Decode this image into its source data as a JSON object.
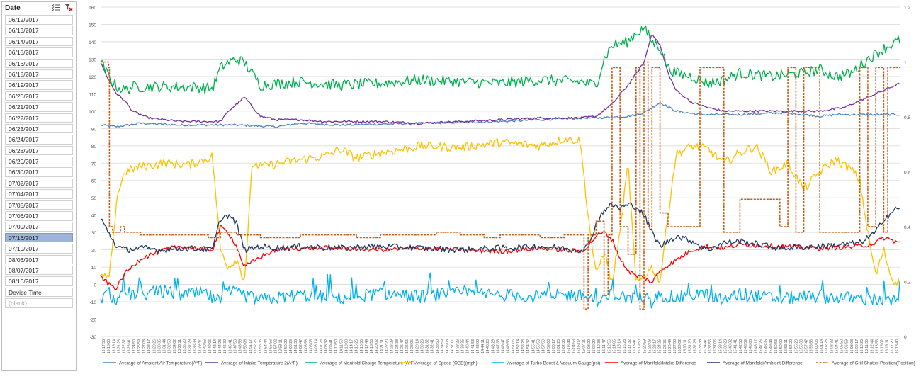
{
  "slicer": {
    "title": "Date",
    "selected": "07/16/2017",
    "items": [
      "06/12/2017",
      "06/13/2017",
      "06/14/2017",
      "06/15/2017",
      "06/16/2017",
      "06/18/2017",
      "06/19/2017",
      "06/20/2017",
      "06/21/2017",
      "06/22/2017",
      "06/23/2017",
      "06/24/2017",
      "06/28/2017",
      "06/29/2017",
      "06/30/2017",
      "07/02/2017",
      "07/04/2017",
      "07/05/2017",
      "07/06/2017",
      "07/09/2017",
      "07/16/2017",
      "07/19/2017",
      "08/06/2017",
      "08/07/2017",
      "08/16/2017",
      "Device Time",
      "(blank)"
    ],
    "icons": [
      "multi-select-icon",
      "clear-filter-icon"
    ]
  },
  "chart_data": {
    "type": "line",
    "title": "",
    "xlabel": "",
    "ylabel": "",
    "ylim": [
      -30,
      160
    ],
    "y2lim": [
      0,
      1.2
    ],
    "y_ticks": [
      -30,
      -20,
      -10,
      0,
      10,
      20,
      30,
      40,
      50,
      60,
      70,
      80,
      90,
      100,
      110,
      120,
      130,
      140,
      150,
      160
    ],
    "y2_ticks": [
      0,
      0.2,
      0.4,
      0.6,
      0.8,
      1,
      1.2
    ],
    "grid": true,
    "legend": "bottom",
    "x_ticks": [
      "13:17:56",
      "13:18:05",
      "13:19:14",
      "13:21:23",
      "13:22:32",
      "13:23:41",
      "13:24:50",
      "13:25:59",
      "13:27:08",
      "13:28:17",
      "13:29:26",
      "13:30:35",
      "13:31:44",
      "13:32:53",
      "13:34:02",
      "13:35:11",
      "13:36:20",
      "13:37:29",
      "13:38:38",
      "13:39:47",
      "13:40:56",
      "13:42:05",
      "13:43:14",
      "13:44:23",
      "13:45:32",
      "13:46:41",
      "13:47:50",
      "13:48:59",
      "13:50:08",
      "13:51:17",
      "13:52:26",
      "13:53:35",
      "13:54:44",
      "13:55:53",
      "13:57:02",
      "13:58:11",
      "13:59:20",
      "14:00:29",
      "14:01:38",
      "14:02:47",
      "14:03:56",
      "14:05:05",
      "14:06:14",
      "14:07:23",
      "14:08:32",
      "14:09:41",
      "14:10:50",
      "14:11:59",
      "14:13:08",
      "14:14:17",
      "14:15:26",
      "14:16:35",
      "14:17:44",
      "14:18:53",
      "14:20:02",
      "14:21:11",
      "14:22:20",
      "14:23:29",
      "14:24:38",
      "14:25:47",
      "14:26:56",
      "14:28:05",
      "14:29:14",
      "14:30:23",
      "14:31:32",
      "14:32:41",
      "14:33:50",
      "14:34:59",
      "14:36:08",
      "14:37:17",
      "14:38:26",
      "14:39:35",
      "14:40:44",
      "14:41:53",
      "14:43:02",
      "14:44:11",
      "14:45:20",
      "14:46:29",
      "14:47:38",
      "14:48:47",
      "14:49:56",
      "14:51:05",
      "14:52:14",
      "14:53:23",
      "14:54:32",
      "14:55:41",
      "14:56:50",
      "14:57:59",
      "14:59:08",
      "15:00:17",
      "15:01:26",
      "15:02:35",
      "15:03:44",
      "15:04:53",
      "15:06:02",
      "15:07:11",
      "15:08:20",
      "15:09:29",
      "15:10:38",
      "15:11:47",
      "15:12:56",
      "15:14:05",
      "15:15:14",
      "15:16:23",
      "15:17:32",
      "15:18:41",
      "15:19:50",
      "15:20:59",
      "15:22:08",
      "15:23:17",
      "15:24:26",
      "15:25:35",
      "15:26:44",
      "15:27:53",
      "15:29:02",
      "15:30:11",
      "15:31:20",
      "15:32:29",
      "15:33:38",
      "15:34:47",
      "15:35:56",
      "15:37:05",
      "15:38:14",
      "15:39:23",
      "15:40:32",
      "15:41:41",
      "15:42:50",
      "15:43:59",
      "15:45:08",
      "15:46:17",
      "15:47:26",
      "15:48:35",
      "15:49:44",
      "15:50:53",
      "15:52:02",
      "15:53:11",
      "15:54:20",
      "15:55:29",
      "15:56:38",
      "15:57:47",
      "15:58:56",
      "16:00:05",
      "16:01:14",
      "16:02:23",
      "16:03:32",
      "16:04:41",
      "16:05:50",
      "16:06:59",
      "16:08:08",
      "16:09:17",
      "16:10:26",
      "16:11:35",
      "16:12:44",
      "16:13:53",
      "16:15:02",
      "16:16:11",
      "16:17:20",
      "16:18:40"
    ],
    "series": [
      {
        "name": "Average of Ambient Air Temperature(Â°F)",
        "color": "#4f81bd",
        "axis": "left",
        "x_pct": [
          0,
          2,
          5,
          10,
          17,
          22,
          25,
          30,
          40,
          50,
          55,
          60,
          62,
          66,
          68,
          70,
          72,
          75,
          80,
          85,
          88,
          90,
          92,
          95,
          100
        ],
        "values": [
          92,
          91,
          93,
          92,
          92,
          91,
          93,
          92,
          93,
          94,
          95,
          96,
          96,
          97,
          99,
          105,
          100,
          98,
          98,
          99,
          98,
          97,
          98,
          98,
          98
        ]
      },
      {
        "name": "Average of Intake Temperature 2(Â°F)",
        "color": "#7030a0",
        "axis": "left",
        "x_pct": [
          0,
          1,
          2,
          3,
          4,
          6,
          10,
          13,
          14,
          15,
          16,
          18,
          20,
          22,
          25,
          28,
          30,
          35,
          40,
          45,
          50,
          55,
          60,
          62,
          64,
          66,
          68,
          69,
          70,
          71,
          72,
          74,
          76,
          78,
          80,
          85,
          90,
          93,
          95,
          97,
          100
        ],
        "values": [
          128,
          118,
          110,
          106,
          100,
          96,
          94,
          94,
          94,
          94,
          100,
          108,
          97,
          95,
          95,
          94,
          94,
          94,
          93,
          94,
          95,
          96,
          96,
          97,
          104,
          115,
          128,
          145,
          138,
          122,
          112,
          105,
          102,
          100,
          100,
          100,
          100,
          102,
          106,
          110,
          116
        ]
      },
      {
        "name": "Average of Manifold Charge Temperature (Â°F)",
        "color": "#00b050",
        "axis": "left",
        "x_pct": [
          0,
          1,
          2,
          3,
          4,
          8,
          12,
          14,
          15,
          16,
          17,
          18,
          20,
          25,
          30,
          35,
          40,
          45,
          50,
          55,
          60,
          62,
          63,
          64,
          66,
          67,
          68,
          69,
          70,
          71,
          72,
          74,
          76,
          78,
          80,
          84,
          88,
          90,
          92,
          94,
          96,
          98,
          100
        ],
        "values": [
          128,
          120,
          114,
          112,
          114,
          114,
          114,
          113,
          125,
          128,
          130,
          128,
          115,
          117,
          115,
          116,
          118,
          117,
          116,
          118,
          117,
          115,
          130,
          138,
          140,
          145,
          148,
          140,
          137,
          125,
          122,
          120,
          116,
          118,
          122,
          120,
          122,
          124,
          120,
          122,
          130,
          136,
          141
        ]
      },
      {
        "name": "Average of Speed (OBD)(mph)",
        "color": "#ffc000",
        "axis": "left",
        "x_pct": [
          0,
          1,
          1.5,
          2,
          3,
          5,
          8,
          11,
          13,
          14,
          15,
          16,
          17,
          18,
          19,
          20,
          25,
          28,
          30,
          32,
          35,
          38,
          40,
          45,
          50,
          55,
          58,
          60,
          61,
          62,
          63,
          64,
          65,
          66,
          67,
          68,
          69,
          70,
          71,
          72,
          74,
          76,
          78,
          80,
          82,
          84,
          86,
          88,
          90,
          92,
          94,
          95,
          96,
          97,
          98,
          99,
          100
        ],
        "values": [
          5,
          3,
          20,
          50,
          65,
          68,
          70,
          69,
          72,
          74,
          20,
          10,
          15,
          2,
          70,
          68,
          72,
          74,
          78,
          73,
          76,
          78,
          80,
          79,
          82,
          80,
          84,
          83,
          40,
          5,
          20,
          0,
          30,
          70,
          0,
          5,
          10,
          2,
          40,
          75,
          80,
          78,
          70,
          76,
          80,
          65,
          70,
          55,
          65,
          72,
          66,
          60,
          30,
          5,
          20,
          3,
          1
        ]
      },
      {
        "name": "Average of Turbo Boost & Vacuum Gauge(psi)",
        "color": "#00b0f0",
        "axis": "left",
        "x_pct": [
          0,
          1,
          2,
          3,
          5,
          8,
          10,
          13,
          14,
          15,
          16,
          20,
          25,
          30,
          35,
          40,
          45,
          50,
          55,
          60,
          62,
          63,
          64,
          66,
          68,
          69,
          70,
          72,
          75,
          78,
          80,
          85,
          90,
          95,
          100
        ],
        "values": [
          -8,
          -5,
          -10,
          -5,
          -6,
          -4,
          -6,
          -5,
          -8,
          -10,
          -4,
          -9,
          -6,
          -8,
          -5,
          -7,
          -5,
          -6,
          -7,
          -6,
          -9,
          -10,
          -5,
          -8,
          -7,
          -11,
          -6,
          -8,
          -5,
          -9,
          -6,
          -8,
          -7,
          -8,
          -10
        ]
      },
      {
        "name": "Average of Manifold/Intake Difference",
        "color": "#ff0000",
        "axis": "left",
        "x_pct": [
          0,
          1,
          2,
          3,
          5,
          8,
          10,
          14,
          15,
          16,
          17,
          18,
          20,
          22,
          25,
          30,
          35,
          40,
          45,
          50,
          55,
          60,
          61,
          62,
          63,
          64,
          65,
          66,
          67,
          68,
          69,
          70,
          72,
          74,
          76,
          78,
          80,
          85,
          90,
          95,
          97,
          98,
          100
        ],
        "values": [
          5,
          0,
          -2,
          6,
          15,
          20,
          22,
          20,
          33,
          30,
          22,
          10,
          16,
          20,
          21,
          21,
          20,
          21,
          20,
          19,
          21,
          19,
          22,
          28,
          30,
          26,
          15,
          8,
          5,
          4,
          1,
          8,
          14,
          20,
          22,
          21,
          23,
          22,
          21,
          22,
          24,
          27,
          24
        ]
      },
      {
        "name": "Average of Manifold/Ambient Difference",
        "color": "#1f3864",
        "axis": "left",
        "x_pct": [
          0,
          1,
          2,
          3,
          5,
          8,
          10,
          14,
          15,
          16,
          17,
          18,
          20,
          22,
          25,
          30,
          35,
          40,
          45,
          50,
          55,
          60,
          61,
          62,
          63,
          64,
          65,
          66,
          67,
          68,
          69,
          70,
          72,
          74,
          76,
          78,
          80,
          85,
          90,
          95,
          97,
          98,
          100
        ],
        "values": [
          38,
          30,
          22,
          20,
          21,
          20,
          21,
          20,
          38,
          40,
          35,
          20,
          22,
          21,
          22,
          21,
          22,
          21,
          20,
          21,
          22,
          20,
          22,
          35,
          43,
          46,
          44,
          46,
          45,
          40,
          30,
          22,
          28,
          25,
          20,
          24,
          25,
          21,
          22,
          24,
          30,
          38,
          45
        ]
      },
      {
        "name": "Average of Grill Shutter Position(Position)",
        "color": "#c55a11",
        "axis": "right",
        "dashed": true,
        "x_pct": [
          0,
          0.8,
          1,
          1.1,
          1.5,
          2.5,
          3,
          5,
          10,
          13,
          13.5,
          14,
          15,
          17,
          20,
          25,
          28,
          32,
          35,
          40,
          42,
          45,
          48,
          50,
          52,
          55,
          58,
          60,
          60.5,
          61,
          62,
          63,
          63.5,
          64,
          65,
          66,
          67,
          67.5,
          68,
          68.5,
          69,
          70,
          71,
          72,
          75,
          78,
          80,
          85,
          86,
          87,
          88,
          90,
          92,
          95,
          96,
          97,
          98,
          98.5,
          99,
          100
        ],
        "values": [
          1,
          1,
          0.98,
          0.4,
          0.38,
          0.4,
          0.38,
          0.37,
          0.37,
          0.37,
          0.36,
          0.36,
          0.38,
          0.37,
          0.36,
          0.37,
          0.37,
          0.36,
          0.37,
          0.37,
          0.38,
          0.37,
          0.36,
          0.37,
          0.37,
          0.36,
          0.37,
          0.37,
          0.1,
          0.37,
          0.42,
          0.15,
          0.37,
          0.98,
          0.4,
          0.3,
          0.98,
          0.1,
          1,
          0.4,
          0.98,
          0.45,
          0.4,
          0.4,
          0.98,
          0.38,
          0.5,
          0.4,
          0.98,
          0.38,
          0.98,
          0.38,
          0.38,
          0.98,
          0.4,
          0.98,
          0.38,
          0.98,
          0.98,
          0.98
        ]
      }
    ]
  }
}
